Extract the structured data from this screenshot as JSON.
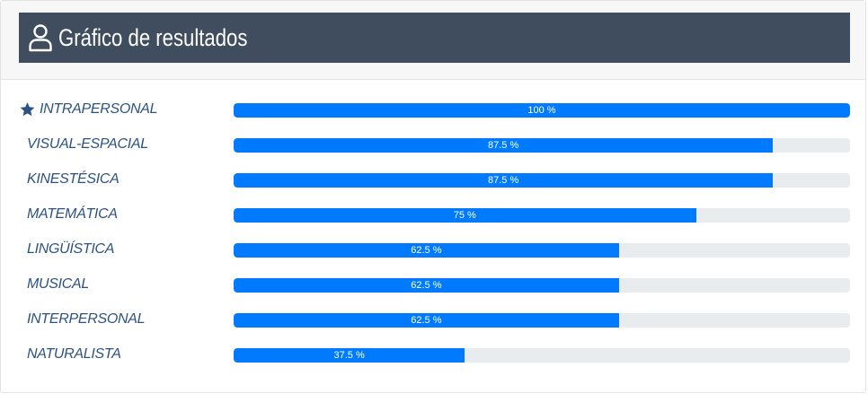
{
  "header": {
    "title": "Gráfico de resultados",
    "icon": "user-icon",
    "bar_color": "#3f4d5e"
  },
  "colors": {
    "fill": "#007bff",
    "track": "#e9ecef",
    "label": "#2c5282"
  },
  "chart_data": {
    "type": "bar",
    "orientation": "horizontal",
    "title": "Gráfico de resultados",
    "xlim": [
      0,
      100
    ],
    "categories": [
      "INTRAPERSONAL",
      "VISUAL-ESPACIAL",
      "KINESTÉSICA",
      "MATEMÁTICA",
      "LINGÜÍSTICA",
      "MUSICAL",
      "INTERPERSONAL",
      "NATURALISTA"
    ],
    "values": [
      100,
      87.5,
      87.5,
      75,
      62.5,
      62.5,
      62.5,
      37.5
    ],
    "value_labels": [
      "100 %",
      "87.5 %",
      "87.5 %",
      "75 %",
      "62.5 %",
      "62.5 %",
      "62.5 %",
      "37.5 %"
    ],
    "highlighted": "INTRAPERSONAL",
    "highlight_icon": "star-icon"
  }
}
